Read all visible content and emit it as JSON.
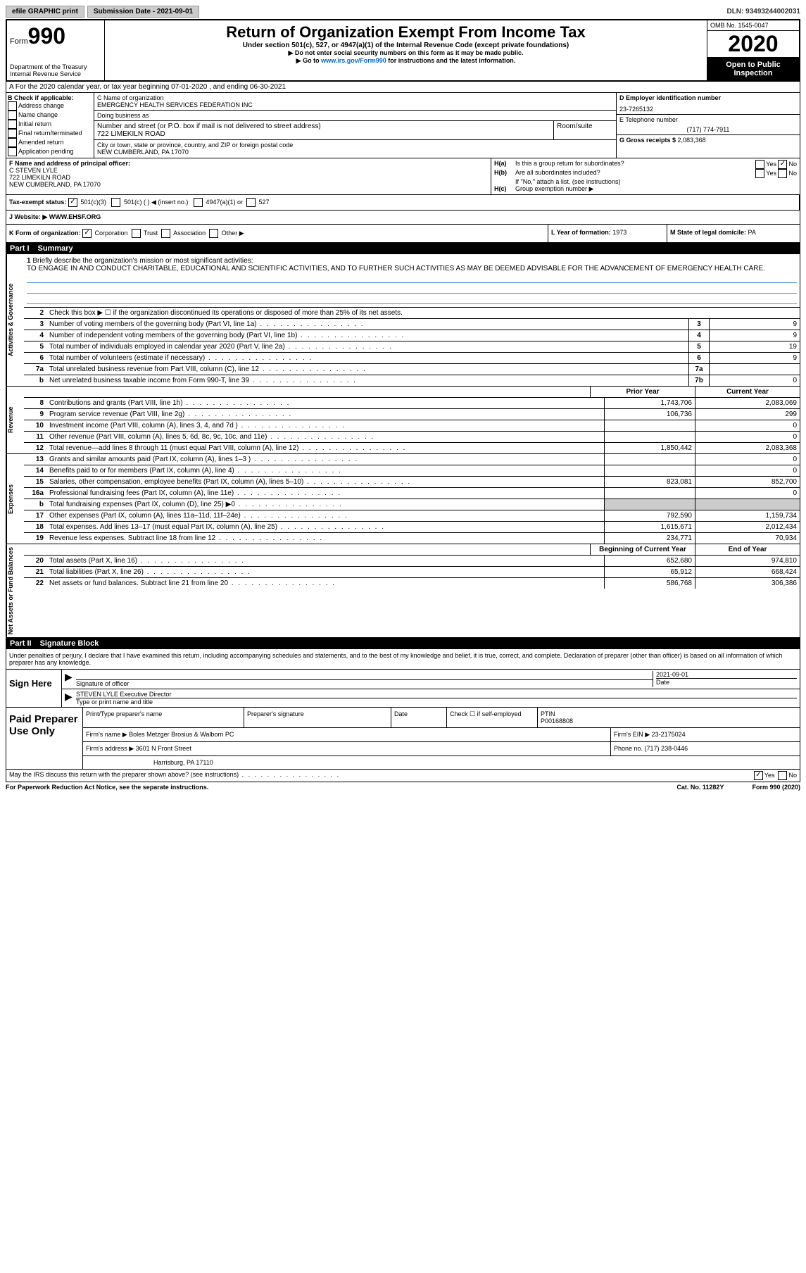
{
  "topbar": {
    "efile": "efile GRAPHIC print",
    "submission_label": "Submission Date - 2021-09-01",
    "dln": "DLN: 93493244002031"
  },
  "header": {
    "form_word": "Form",
    "form_num": "990",
    "dept": "Department of the Treasury\nInternal Revenue Service",
    "title": "Return of Organization Exempt From Income Tax",
    "subtitle": "Under section 501(c), 527, or 4947(a)(1) of the Internal Revenue Code (except private foundations)",
    "note1": "▶ Do not enter social security numbers on this form as it may be made public.",
    "note2_prefix": "▶ Go to ",
    "note2_link": "www.irs.gov/Form990",
    "note2_suffix": " for instructions and the latest information.",
    "omb": "OMB No. 1545-0047",
    "year": "2020",
    "open": "Open to Public Inspection"
  },
  "rowA": "A For the 2020 calendar year, or tax year beginning 07-01-2020   , and ending 06-30-2021",
  "sectionB": {
    "label": "B Check if applicable:",
    "opts": [
      "Address change",
      "Name change",
      "Initial return",
      "Final return/terminated",
      "Amended return",
      "Application pending"
    ]
  },
  "sectionC": {
    "name_label": "C Name of organization",
    "name": "EMERGENCY HEALTH SERVICES FEDERATION INC",
    "dba_label": "Doing business as",
    "dba": "",
    "addr_label": "Number and street (or P.O. box if mail is not delivered to street address)",
    "addr": "722 LIMEKILN ROAD",
    "room_label": "Room/suite",
    "city_label": "City or town, state or province, country, and ZIP or foreign postal code",
    "city": "NEW CUMBERLAND, PA  17070"
  },
  "sectionD": {
    "ein_label": "D Employer identification number",
    "ein": "23-7265132",
    "phone_label": "E Telephone number",
    "phone": "(717) 774-7911",
    "gross_label": "G Gross receipts $ ",
    "gross": "2,083,368"
  },
  "sectionF": {
    "label": "F Name and address of principal officer:",
    "name": "C STEVEN LYLE",
    "addr1": "722 LIMEKILN ROAD",
    "addr2": "NEW CUMBERLAND, PA  17070"
  },
  "sectionH": {
    "a": "Is this a group return for subordinates?",
    "b": "Are all subordinates included?",
    "b_note": "If \"No,\" attach a list. (see instructions)",
    "c": "Group exemption number ▶",
    "yes": "Yes",
    "no": "No"
  },
  "sectionI": {
    "label": "Tax-exempt status:",
    "opt1": "501(c)(3)",
    "opt2": "501(c) (  ) ◀ (insert no.)",
    "opt3": "4947(a)(1) or",
    "opt4": "527"
  },
  "sectionJ": {
    "label": "J  Website: ▶",
    "value": "WWW.EHSF.ORG"
  },
  "sectionK": {
    "label": "K Form of organization:",
    "opts": [
      "Corporation",
      "Trust",
      "Association",
      "Other ▶"
    ]
  },
  "sectionL": {
    "label": "L Year of formation: ",
    "value": "1973"
  },
  "sectionM": {
    "label": "M State of legal domicile: ",
    "value": "PA"
  },
  "part1": {
    "label": "Part I",
    "title": "Summary"
  },
  "mission": {
    "num": "1",
    "label": "Briefly describe the organization's mission or most significant activities:",
    "text": "TO ENGAGE IN AND CONDUCT CHARITABLE, EDUCATIONAL AND SCIENTIFIC ACTIVITIES, AND TO FURTHER SUCH ACTIVITIES AS MAY BE DEEMED ADVISABLE FOR THE ADVANCEMENT OF EMERGENCY HEALTH CARE."
  },
  "gov": {
    "vlabel": "Activities & Governance",
    "line2": "Check this box ▶ ☐ if the organization discontinued its operations or disposed of more than 25% of its net assets.",
    "lines": [
      {
        "n": "3",
        "d": "Number of voting members of the governing body (Part VI, line 1a)",
        "b": "3",
        "v": "9"
      },
      {
        "n": "4",
        "d": "Number of independent voting members of the governing body (Part VI, line 1b)",
        "b": "4",
        "v": "9"
      },
      {
        "n": "5",
        "d": "Total number of individuals employed in calendar year 2020 (Part V, line 2a)",
        "b": "5",
        "v": "19"
      },
      {
        "n": "6",
        "d": "Total number of volunteers (estimate if necessary)",
        "b": "6",
        "v": "9"
      },
      {
        "n": "7a",
        "d": "Total unrelated business revenue from Part VIII, column (C), line 12",
        "b": "7a",
        "v": ""
      },
      {
        "n": "b",
        "d": "Net unrelated business taxable income from Form 990-T, line 39",
        "b": "7b",
        "v": "0"
      }
    ]
  },
  "rev": {
    "vlabel": "Revenue",
    "header_prior": "Prior Year",
    "header_current": "Current Year",
    "lines": [
      {
        "n": "8",
        "d": "Contributions and grants (Part VIII, line 1h)",
        "p": "1,743,706",
        "c": "2,083,069"
      },
      {
        "n": "9",
        "d": "Program service revenue (Part VIII, line 2g)",
        "p": "106,736",
        "c": "299"
      },
      {
        "n": "10",
        "d": "Investment income (Part VIII, column (A), lines 3, 4, and 7d )",
        "p": "",
        "c": "0"
      },
      {
        "n": "11",
        "d": "Other revenue (Part VIII, column (A), lines 5, 6d, 8c, 9c, 10c, and 11e)",
        "p": "",
        "c": "0"
      },
      {
        "n": "12",
        "d": "Total revenue—add lines 8 through 11 (must equal Part VIII, column (A), line 12)",
        "p": "1,850,442",
        "c": "2,083,368"
      }
    ]
  },
  "exp": {
    "vlabel": "Expenses",
    "lines": [
      {
        "n": "13",
        "d": "Grants and similar amounts paid (Part IX, column (A), lines 1–3 )",
        "p": "",
        "c": "0"
      },
      {
        "n": "14",
        "d": "Benefits paid to or for members (Part IX, column (A), line 4)",
        "p": "",
        "c": "0"
      },
      {
        "n": "15",
        "d": "Salaries, other compensation, employee benefits (Part IX, column (A), lines 5–10)",
        "p": "823,081",
        "c": "852,700"
      },
      {
        "n": "16a",
        "d": "Professional fundraising fees (Part IX, column (A), line 11e)",
        "p": "",
        "c": "0"
      },
      {
        "n": "b",
        "d": "Total fundraising expenses (Part IX, column (D), line 25) ▶0",
        "p": "shaded",
        "c": "shaded"
      },
      {
        "n": "17",
        "d": "Other expenses (Part IX, column (A), lines 11a–11d, 11f–24e)",
        "p": "792,590",
        "c": "1,159,734"
      },
      {
        "n": "18",
        "d": "Total expenses. Add lines 13–17 (must equal Part IX, column (A), line 25)",
        "p": "1,615,671",
        "c": "2,012,434"
      },
      {
        "n": "19",
        "d": "Revenue less expenses. Subtract line 18 from line 12",
        "p": "234,771",
        "c": "70,934"
      }
    ]
  },
  "net": {
    "vlabel": "Net Assets or Fund Balances",
    "header_begin": "Beginning of Current Year",
    "header_end": "End of Year",
    "lines": [
      {
        "n": "20",
        "d": "Total assets (Part X, line 16)",
        "p": "652,680",
        "c": "974,810"
      },
      {
        "n": "21",
        "d": "Total liabilities (Part X, line 26)",
        "p": "65,912",
        "c": "668,424"
      },
      {
        "n": "22",
        "d": "Net assets or fund balances. Subtract line 21 from line 20",
        "p": "586,768",
        "c": "306,386"
      }
    ]
  },
  "part2": {
    "label": "Part II",
    "title": "Signature Block"
  },
  "declaration": "Under penalties of perjury, I declare that I have examined this return, including accompanying schedules and statements, and to the best of my knowledge and belief, it is true, correct, and complete. Declaration of preparer (other than officer) is based on all information of which preparer has any knowledge.",
  "sign": {
    "label": "Sign Here",
    "sig_label": "Signature of officer",
    "date_label": "Date",
    "date": "2021-09-01",
    "name": "STEVEN LYLE  Executive Director",
    "name_label": "Type or print name and title"
  },
  "prep": {
    "label": "Paid Preparer Use Only",
    "col1": "Print/Type preparer's name",
    "col2": "Preparer's signature",
    "col3": "Date",
    "col4_label": "Check ☐ if self-employed",
    "col5_label": "PTIN",
    "ptin": "P00168808",
    "firm_label": "Firm's name    ▶ ",
    "firm": "Boles Metzger Brosius & Walborn PC",
    "ein_label": "Firm's EIN ▶ ",
    "ein": "23-2175024",
    "addr_label": "Firm's address ▶ ",
    "addr1": "3601 N Front Street",
    "addr2": "Harrisburg, PA  17110",
    "phone_label": "Phone no. ",
    "phone": "(717) 238-0446"
  },
  "discuss": {
    "text": "May the IRS discuss this return with the preparer shown above? (see instructions)",
    "yes": "Yes",
    "no": "No"
  },
  "footer": {
    "left": "For Paperwork Reduction Act Notice, see the separate instructions.",
    "mid": "Cat. No. 11282Y",
    "right": "Form 990 (2020)"
  }
}
